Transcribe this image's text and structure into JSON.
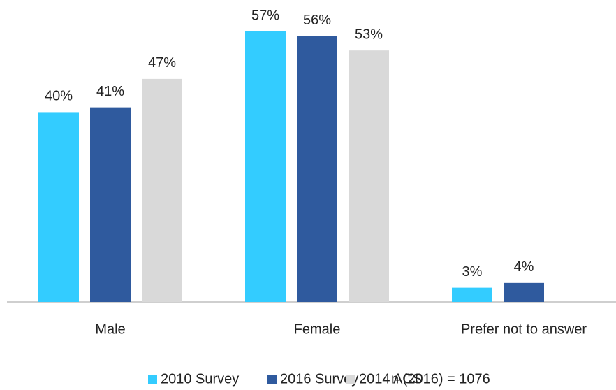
{
  "chart_data": {
    "type": "bar",
    "categories": [
      "Male",
      "Female",
      "Prefer not to answer"
    ],
    "series": [
      {
        "name": "2010 Survey",
        "color": "#33ccff",
        "values": [
          40,
          57,
          3
        ],
        "value_labels": [
          "40%",
          "57%",
          "3%"
        ]
      },
      {
        "name": "2016 Survey",
        "color": "#2f5a9e",
        "values": [
          41,
          56,
          4
        ],
        "value_labels": [
          "41%",
          "56%",
          "4%"
        ]
      },
      {
        "name": "2014 ACS",
        "color": "#d9d9d9",
        "values": [
          47,
          53,
          null
        ],
        "value_labels": [
          "47%",
          "53%",
          null
        ]
      }
    ],
    "annotation": "n (2016) = 1076"
  }
}
